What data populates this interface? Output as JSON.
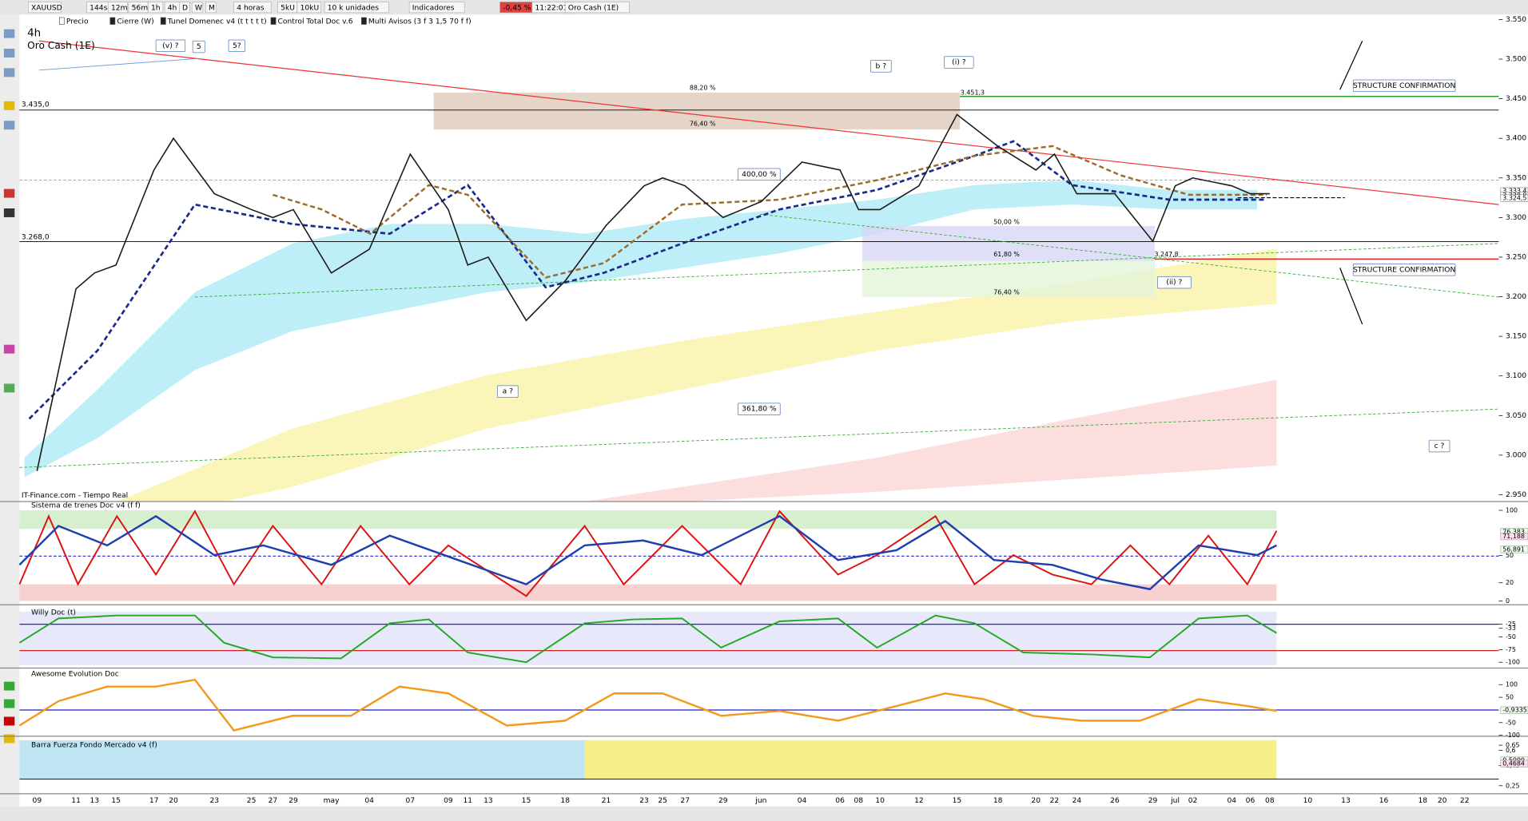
{
  "toolbar": {
    "symbol": "XAUUSD",
    "timeframes": [
      "144s",
      "12m",
      "56m",
      "1h",
      "4h",
      "D",
      "W",
      "M"
    ],
    "period": "4 horas",
    "units": [
      "5kU",
      "10kU"
    ],
    "units_menu": "10 k unidades",
    "indicators": "Indicadores",
    "change": "-0,45 %",
    "time": "11:22:01",
    "instrument": "Oro Cash (1E)"
  },
  "legend": [
    "Precio",
    "Cierre (W)",
    "Tunel Domenec v4 (t t t t t)",
    "Control Total Doc v.6",
    "Multi Avisos (3 f 3 1,5 70 f f)"
  ],
  "chart_data": {
    "type": "line",
    "timeframe": "4h",
    "name": "Oro Cash (1E)",
    "source": "IT-Finance.com - Tiempo Real",
    "ylim": [
      2.95,
      3.55
    ],
    "yticks": [
      {
        "value": 3.55,
        "label": "3.550"
      },
      {
        "value": 3.5,
        "label": "3.500"
      },
      {
        "value": 3.45,
        "label": "3.450"
      },
      {
        "value": 3.4,
        "label": "3.400"
      },
      {
        "value": 3.35,
        "label": "3.350"
      },
      {
        "value": 3.3,
        "label": "3.300"
      },
      {
        "value": 3.25,
        "label": "3.250"
      },
      {
        "value": 3.2,
        "label": "3.200"
      },
      {
        "value": 3.15,
        "label": "3.150"
      },
      {
        "value": 3.1,
        "label": "3.100"
      },
      {
        "value": 3.05,
        "label": "3.050"
      },
      {
        "value": 3,
        "label": "3.000"
      },
      {
        "value": 2.95,
        "label": "2.950"
      }
    ],
    "levels": [
      {
        "value": 3.435,
        "label": "3.435,0"
      },
      {
        "value": 3.268,
        "label": "3.268,0"
      }
    ],
    "price_tags": [
      {
        "value": 3.3334,
        "label": "3.333,4"
      },
      {
        "value": 3.328,
        "label": "3.328,0"
      },
      {
        "value": 3.3245,
        "label": "3.324,5"
      }
    ],
    "annotations": [
      "(v) ?",
      "5",
      "5?",
      "b ?",
      "(i) ?",
      "88,20 %",
      "76,40 %",
      "3.451,3",
      "400,00 %",
      "50,00 %",
      "61,80 %",
      "3.247,8",
      "76,40 %",
      "(ii) ?",
      "a ?",
      "361,80 %",
      "c ?",
      "STRUCTURE CONFIRMATION",
      "STRUCTURE CONFIRMATION"
    ],
    "dates": [
      "09",
      "11",
      "13",
      "15",
      "17",
      "20",
      "23",
      "25",
      "27",
      "29",
      "may",
      "04",
      "07",
      "09",
      "11",
      "13",
      "15",
      "18",
      "21",
      "23",
      "25",
      "27",
      "29",
      "jun",
      "04",
      "06",
      "08",
      "10",
      "12",
      "15",
      "18",
      "20",
      "22",
      "24",
      "26",
      "29",
      "jul",
      "02",
      "04",
      "06",
      "08",
      "10",
      "13",
      "16",
      "18",
      "20",
      "22"
    ],
    "color": "#1a1a1a",
    "values": [
      2.98,
      3.21,
      3.23,
      3.24,
      3.36,
      3.4,
      3.33,
      3.31,
      3.3,
      3.31,
      3.23,
      3.26,
      3.38,
      3.31,
      3.24,
      3.25,
      3.17,
      3.22,
      3.29,
      3.34,
      3.35,
      3.34,
      3.3,
      3.32,
      3.37,
      3.36,
      3.31,
      3.31,
      3.34,
      3.43,
      3.39,
      3.36,
      3.38,
      3.33,
      3.33,
      3.27,
      3.34,
      3.35,
      3.34,
      3.33,
      3.33,
      null,
      null,
      null,
      null,
      null,
      null
    ]
  },
  "panels": [
    {
      "title": "Sistema de trenes Doc v4 (f f)",
      "ylim": [
        0,
        100
      ],
      "ticks": [
        100,
        50,
        20,
        0
      ],
      "tags": [
        {
          "value": 76.383,
          "label": "76,383"
        },
        {
          "value": 71.188,
          "label": "71,188"
        },
        {
          "value": 56.891,
          "label": "56,891"
        }
      ]
    },
    {
      "title": "Willy Doc (t)",
      "ylim": [
        -100,
        0
      ],
      "ticks": [
        -25,
        -33,
        -50,
        -75,
        -100
      ],
      "tags": []
    },
    {
      "title": "Awesome Evolution Doc",
      "ylim": [
        -100,
        100
      ],
      "ticks": [
        100,
        50,
        -50,
        -100
      ],
      "tags": [
        {
          "value": -0.9335,
          "label": "-0,9335"
        }
      ]
    },
    {
      "title": "Barra Fuerza Fondo Mercado v4 (f)",
      "ylim": [
        0.2,
        0.7
      ],
      "ticks": [
        {
          "value": 0.65,
          "label": "0,65"
        },
        {
          "value": 0.6,
          "label": "0,6"
        },
        {
          "value": 0.45,
          "label": "0,45"
        },
        {
          "value": 0.25,
          "label": "0,25"
        }
      ],
      "tags": [
        {
          "value": 0.5,
          "label": "0,5000"
        },
        {
          "value": 0.4684,
          "label": "0,4684"
        }
      ]
    }
  ]
}
